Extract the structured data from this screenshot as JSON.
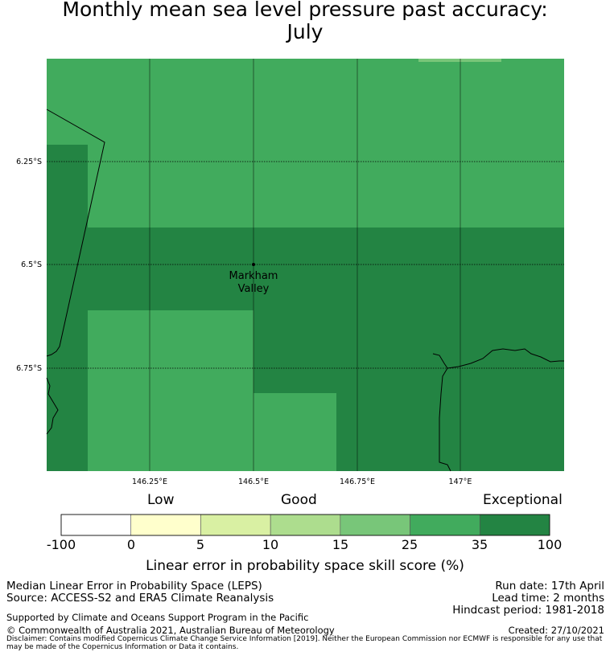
{
  "title": {
    "line1": "Monthly mean sea level pressure past accuracy:",
    "line2": "July"
  },
  "map": {
    "lat_labels": [
      "6.25°S",
      "6.5°S",
      "6.75°S"
    ],
    "lon_labels": [
      "146.25°E",
      "146.5°E",
      "146.75°E",
      "147°E"
    ],
    "place_name_line1": "Markham",
    "place_name_line2": "Valley",
    "colors": {
      "cat_25_35": "#41ab5d",
      "cat_35_100": "#238443"
    }
  },
  "legend": {
    "category_low": "Low",
    "category_good": "Good",
    "category_exceptional": "Exceptional",
    "bins": [
      {
        "color": "#ffffff"
      },
      {
        "color": "#ffffcc"
      },
      {
        "color": "#d9f0a3"
      },
      {
        "color": "#addd8e"
      },
      {
        "color": "#78c679"
      },
      {
        "color": "#41ab5d"
      },
      {
        "color": "#238443"
      }
    ],
    "ticks": [
      "-100",
      "0",
      "5",
      "10",
      "15",
      "25",
      "35",
      "100"
    ],
    "axis_label": "Linear error in probability space skill score (%)"
  },
  "footer": {
    "left_line1": "Median Linear Error in Probability Space (LEPS)",
    "left_line2": "Source: ACCESS-S2 and ERA5 Climate Reanalysis",
    "right_line1": "Run date: 17th April",
    "right_line2": "Lead time: 2 months",
    "right_line3": "Hindcast period: 1981-2018",
    "support": "Supported by Climate and Oceans Support Program in the Pacific",
    "copyright": "© Commonwealth of Australia 2021, Australian Bureau of Meteorology",
    "created": "Created: 27/10/2021",
    "disclaimer": "Disclaimer: Contains modified Copernicus Climate Change Service Information [2019]. Neither the European Commission nor ECMWF is responsible for any use that may be made of the Copernicus Information or Data it contains."
  }
}
